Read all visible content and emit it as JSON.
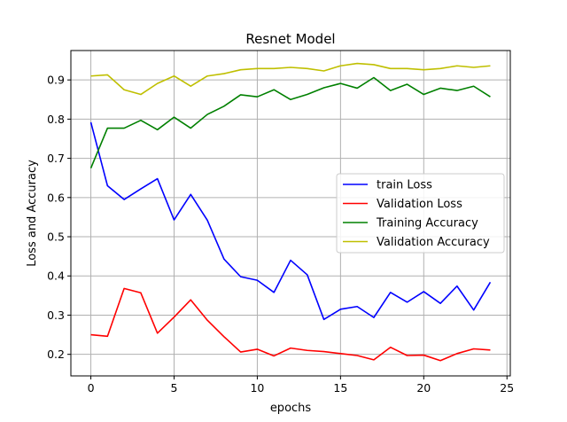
{
  "chart_data": {
    "type": "line",
    "title": "Resnet Model",
    "xlabel": "epochs",
    "ylabel": "Loss and Accuracy",
    "xlim": [
      -1.2,
      25.2
    ],
    "ylim": [
      0.145,
      0.975
    ],
    "xticks": [
      0,
      5,
      10,
      15,
      20,
      25
    ],
    "yticks": [
      0.2,
      0.3,
      0.4,
      0.5,
      0.6,
      0.7,
      0.8,
      0.9
    ],
    "xtick_labels": [
      "0",
      "5",
      "10",
      "15",
      "20",
      "25"
    ],
    "ytick_labels": [
      "0.2",
      "0.3",
      "0.4",
      "0.5",
      "0.6",
      "0.7",
      "0.8",
      "0.9"
    ],
    "grid": true,
    "legend_position": "center-right",
    "x": [
      0,
      1,
      2,
      3,
      4,
      5,
      6,
      7,
      8,
      9,
      10,
      11,
      12,
      13,
      14,
      15,
      16,
      17,
      18,
      19,
      20,
      21,
      22,
      23,
      24
    ],
    "series": [
      {
        "name": "train Loss",
        "color": "#0000ff",
        "values": [
          0.792,
          0.63,
          0.595,
          0.622,
          0.648,
          0.543,
          0.608,
          0.542,
          0.443,
          0.398,
          0.389,
          0.358,
          0.44,
          0.403,
          0.289,
          0.315,
          0.322,
          0.294,
          0.358,
          0.333,
          0.36,
          0.33,
          0.374,
          0.313,
          0.384
        ]
      },
      {
        "name": "Validation Loss",
        "color": "#ff0000",
        "values": [
          0.25,
          0.246,
          0.368,
          0.357,
          0.254,
          0.295,
          0.339,
          0.287,
          0.245,
          0.206,
          0.213,
          0.196,
          0.216,
          0.21,
          0.207,
          0.202,
          0.197,
          0.186,
          0.218,
          0.197,
          0.198,
          0.184,
          0.202,
          0.214,
          0.211
        ]
      },
      {
        "name": "Training Accuracy",
        "color": "#008000",
        "values": [
          0.675,
          0.777,
          0.777,
          0.797,
          0.773,
          0.805,
          0.777,
          0.812,
          0.833,
          0.862,
          0.857,
          0.875,
          0.85,
          0.863,
          0.88,
          0.891,
          0.879,
          0.906,
          0.873,
          0.889,
          0.863,
          0.879,
          0.873,
          0.884,
          0.857
        ]
      },
      {
        "name": "Validation Accuracy",
        "color": "#bfbf00",
        "values": [
          0.91,
          0.913,
          0.875,
          0.863,
          0.891,
          0.91,
          0.884,
          0.91,
          0.916,
          0.926,
          0.929,
          0.929,
          0.932,
          0.929,
          0.923,
          0.936,
          0.942,
          0.939,
          0.929,
          0.929,
          0.926,
          0.929,
          0.936,
          0.932,
          0.936
        ]
      }
    ]
  }
}
